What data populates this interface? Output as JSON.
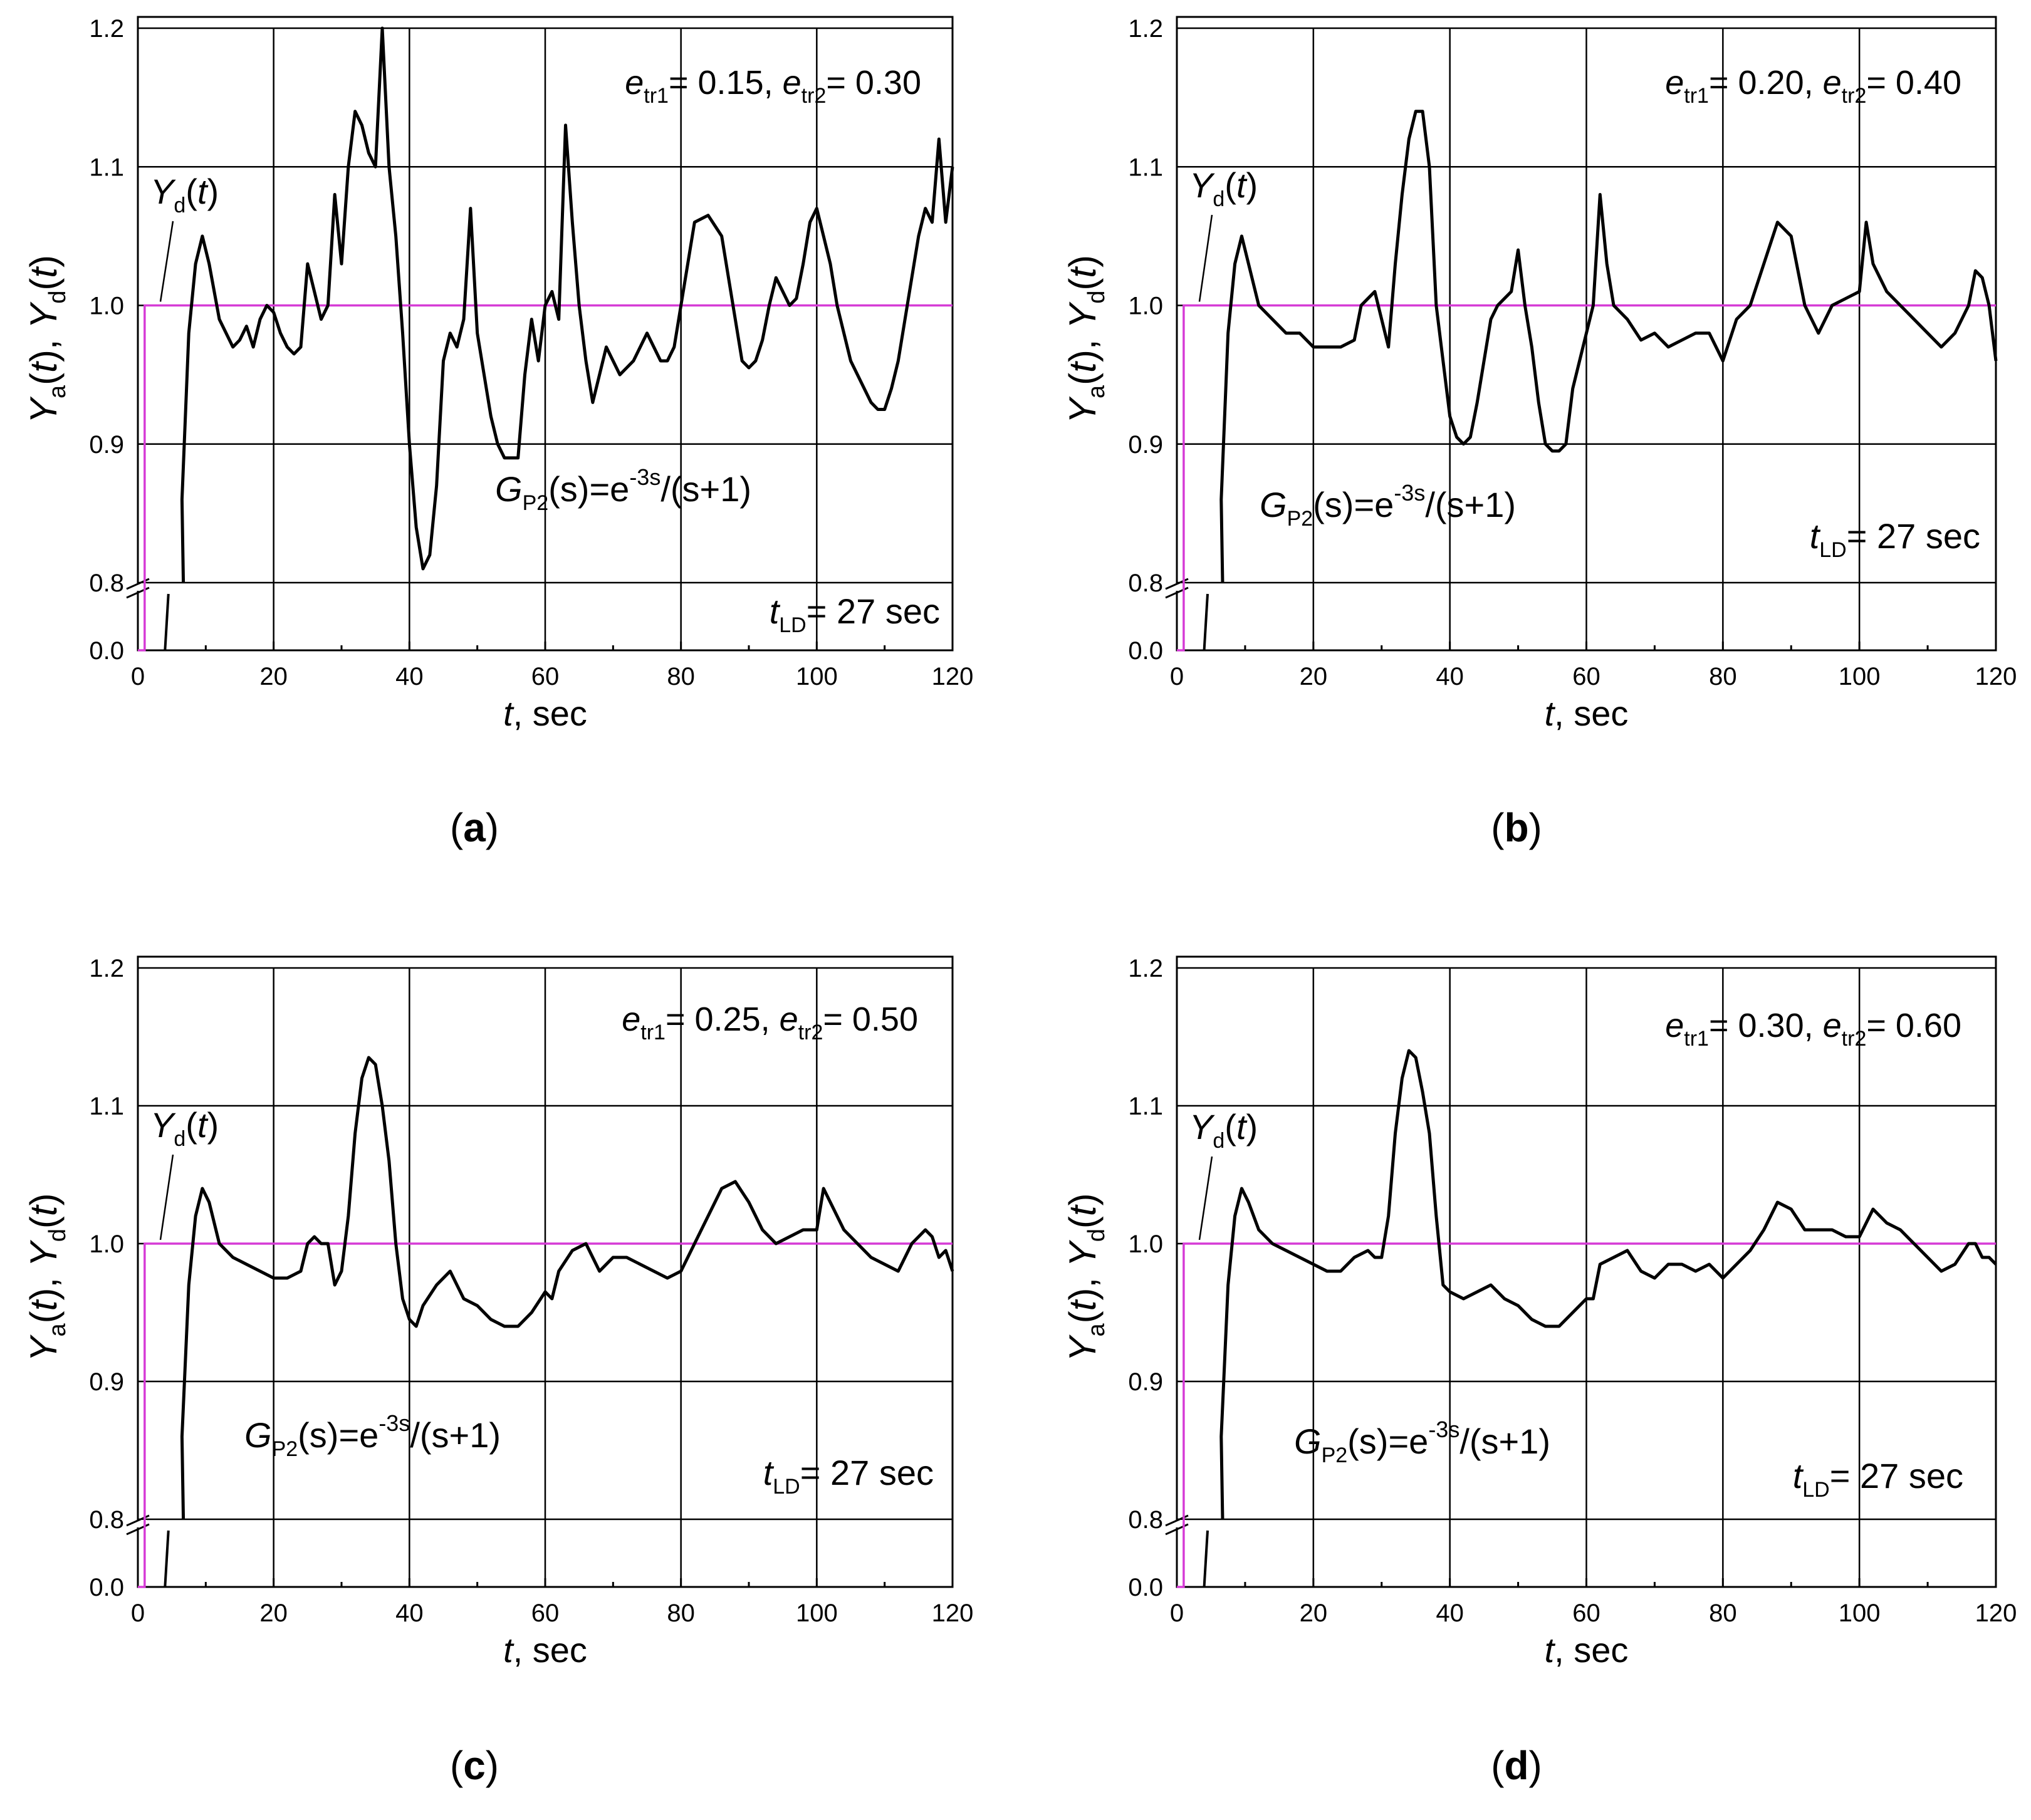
{
  "colors": {
    "response": "#000000",
    "setpoint": "#d63bd6",
    "grid": "#000000",
    "frame": "#000000",
    "background": "#ffffff"
  },
  "chart_data": [
    {
      "type": "line",
      "panel": "a",
      "caption": "(a)",
      "xlabel": "t, sec",
      "ylabel": "Ya(t),  Yd(t)",
      "xlim": [
        0,
        120
      ],
      "ylim_lower": [
        0.0,
        0.05
      ],
      "ylim_upper": [
        0.8,
        1.2
      ],
      "xticks": [
        "0",
        "20",
        "40",
        "60",
        "80",
        "100",
        "120"
      ],
      "yticks_upper": [
        "0.8",
        "0.9",
        "1.0",
        "1.1",
        "1.2"
      ],
      "yticks_lower": [
        "0.0"
      ],
      "annotations": {
        "etr": "etr1= 0.15,  etr2= 0.30",
        "gp2": "GP2(s)=e^-3s/(s+1)",
        "tld": "tLD= 27 sec",
        "yd": "Yd(t)"
      },
      "series": [
        {
          "name": "Yd(t)",
          "x": [
            0,
            1,
            1,
            120
          ],
          "y": [
            0,
            0,
            1.0,
            1.0
          ]
        },
        {
          "name": "Ya(t)",
          "x": [
            0,
            4,
            5,
            6.5,
            7.5,
            8.5,
            9.5,
            10.5,
            12,
            14,
            15,
            16,
            17,
            18,
            19,
            20,
            21,
            22,
            23,
            24,
            25,
            26,
            27,
            28,
            29,
            30,
            31,
            32,
            33,
            34,
            35,
            36,
            37,
            38,
            39,
            40,
            41,
            42,
            43,
            44,
            45,
            46,
            47,
            48,
            49,
            50,
            51,
            52,
            53,
            54,
            55,
            56,
            57,
            58,
            59,
            60,
            61,
            62,
            63,
            64,
            65,
            66,
            67,
            68,
            69,
            70,
            71,
            72,
            73,
            74,
            75,
            76,
            77,
            78,
            79,
            80,
            82,
            84,
            86,
            88,
            89,
            90,
            91,
            92,
            93,
            94,
            95,
            96,
            97,
            98,
            99,
            100,
            101,
            102,
            103,
            104,
            105,
            106,
            107,
            108,
            109,
            110,
            111,
            112,
            113,
            114,
            115,
            116,
            117,
            118,
            119,
            120
          ],
          "y": [
            0,
            0,
            0.7,
            0.86,
            0.98,
            1.03,
            1.05,
            1.03,
            0.99,
            0.97,
            0.975,
            0.985,
            0.97,
            0.99,
            1.0,
            0.995,
            0.98,
            0.97,
            0.965,
            0.97,
            1.03,
            1.01,
            0.99,
            1.0,
            1.08,
            1.03,
            1.1,
            1.14,
            1.13,
            1.11,
            1.1,
            1.2,
            1.1,
            1.05,
            0.98,
            0.9,
            0.84,
            0.81,
            0.82,
            0.87,
            0.96,
            0.98,
            0.97,
            0.99,
            1.07,
            0.98,
            0.95,
            0.92,
            0.9,
            0.89,
            0.89,
            0.89,
            0.95,
            0.99,
            0.96,
            1.0,
            1.01,
            0.99,
            1.13,
            1.06,
            1.0,
            0.96,
            0.93,
            0.95,
            0.97,
            0.96,
            0.95,
            0.955,
            0.96,
            0.97,
            0.98,
            0.97,
            0.96,
            0.96,
            0.97,
            1.0,
            1.06,
            1.065,
            1.05,
            0.99,
            0.96,
            0.955,
            0.96,
            0.975,
            1.0,
            1.02,
            1.01,
            1.0,
            1.005,
            1.03,
            1.06,
            1.07,
            1.05,
            1.03,
            1.0,
            0.98,
            0.96,
            0.95,
            0.94,
            0.93,
            0.925,
            0.925,
            0.94,
            0.96,
            0.99,
            1.02,
            1.05,
            1.07,
            1.06,
            1.12,
            1.06,
            1.1
          ]
        }
      ]
    },
    {
      "type": "line",
      "panel": "b",
      "caption": "(b)",
      "xlabel": "t, sec",
      "ylabel": "Ya(t),  Yd(t)",
      "xlim": [
        0,
        120
      ],
      "ylim_lower": [
        0.0,
        0.05
      ],
      "ylim_upper": [
        0.8,
        1.2
      ],
      "xticks": [
        "0",
        "20",
        "40",
        "60",
        "80",
        "100",
        "120"
      ],
      "yticks_upper": [
        "0.8",
        "0.9",
        "1.0",
        "1.1",
        "1.2"
      ],
      "yticks_lower": [
        "0.0"
      ],
      "annotations": {
        "etr": "etr1= 0.20,  etr2= 0.40",
        "gp2": "GP2(s)=e^-3s/(s+1)",
        "tld": "tLD= 27 sec",
        "yd": "Yd(t)"
      },
      "series": [
        {
          "name": "Yd(t)",
          "x": [
            0,
            1,
            1,
            120
          ],
          "y": [
            0,
            0,
            1.0,
            1.0
          ]
        },
        {
          "name": "Ya(t)",
          "x": [
            0,
            4,
            5,
            6.5,
            7.5,
            8.5,
            9.5,
            10.5,
            12,
            14,
            16,
            18,
            20,
            22,
            24,
            26,
            27,
            28,
            29,
            30,
            31,
            32,
            33,
            34,
            35,
            36,
            37,
            38,
            39,
            40,
            41,
            42,
            43,
            44,
            45,
            46,
            47,
            48,
            49,
            50,
            51,
            52,
            53,
            54,
            55,
            56,
            57,
            58,
            59,
            60,
            61,
            62,
            63,
            64,
            66,
            68,
            70,
            72,
            74,
            76,
            78,
            80,
            82,
            84,
            86,
            88,
            90,
            92,
            94,
            96,
            98,
            100,
            101,
            102,
            104,
            106,
            108,
            110,
            112,
            114,
            116,
            117,
            118,
            119,
            120
          ],
          "y": [
            0,
            0,
            0.7,
            0.86,
            0.98,
            1.03,
            1.05,
            1.03,
            1.0,
            0.99,
            0.98,
            0.98,
            0.97,
            0.97,
            0.97,
            0.975,
            1.0,
            1.005,
            1.01,
            0.99,
            0.97,
            1.03,
            1.08,
            1.12,
            1.14,
            1.14,
            1.1,
            1.0,
            0.96,
            0.92,
            0.905,
            0.9,
            0.905,
            0.93,
            0.96,
            0.99,
            1.0,
            1.005,
            1.01,
            1.04,
            1.0,
            0.97,
            0.93,
            0.9,
            0.895,
            0.895,
            0.9,
            0.94,
            0.96,
            0.98,
            1.0,
            1.08,
            1.03,
            1.0,
            0.99,
            0.975,
            0.98,
            0.97,
            0.975,
            0.98,
            0.98,
            0.96,
            0.99,
            1.0,
            1.03,
            1.06,
            1.05,
            1.0,
            0.98,
            1.0,
            1.005,
            1.01,
            1.06,
            1.03,
            1.01,
            1.0,
            0.99,
            0.98,
            0.97,
            0.98,
            1.0,
            1.025,
            1.02,
            1.0,
            0.96
          ]
        }
      ]
    },
    {
      "type": "line",
      "panel": "c",
      "caption": "(c)",
      "xlabel": "t, sec",
      "ylabel": "Ya(t),  Yd(t)",
      "xlim": [
        0,
        120
      ],
      "ylim_lower": [
        0.0,
        0.05
      ],
      "ylim_upper": [
        0.8,
        1.2
      ],
      "xticks": [
        "0",
        "20",
        "40",
        "60",
        "80",
        "100",
        "120"
      ],
      "yticks_upper": [
        "0.8",
        "0.9",
        "1.0",
        "1.1",
        "1.2"
      ],
      "yticks_lower": [
        "0.0"
      ],
      "annotations": {
        "etr": "etr1= 0.25,  etr2= 0.50",
        "gp2": "GP2(s)=e^-3s/(s+1)",
        "tld": "tLD= 27 sec",
        "yd": "Yd(t)"
      },
      "series": [
        {
          "name": "Yd(t)",
          "x": [
            0,
            1,
            1,
            120
          ],
          "y": [
            0,
            0,
            1.0,
            1.0
          ]
        },
        {
          "name": "Ya(t)",
          "x": [
            0,
            4,
            5,
            6.5,
            7.5,
            8.5,
            9.5,
            10.5,
            12,
            14,
            16,
            18,
            20,
            22,
            24,
            25,
            26,
            27,
            28,
            29,
            30,
            31,
            32,
            33,
            34,
            35,
            36,
            37,
            38,
            39,
            40,
            41,
            42,
            44,
            46,
            48,
            50,
            52,
            54,
            56,
            58,
            60,
            61,
            62,
            64,
            66,
            68,
            70,
            72,
            74,
            76,
            78,
            80,
            82,
            84,
            86,
            88,
            90,
            92,
            94,
            96,
            98,
            100,
            101,
            102,
            104,
            106,
            108,
            110,
            112,
            114,
            116,
            117,
            118,
            119,
            120
          ],
          "y": [
            0,
            0,
            0.7,
            0.86,
            0.97,
            1.02,
            1.04,
            1.03,
            1.0,
            0.99,
            0.985,
            0.98,
            0.975,
            0.975,
            0.98,
            1.0,
            1.005,
            1.0,
            1.0,
            0.97,
            0.98,
            1.02,
            1.08,
            1.12,
            1.135,
            1.13,
            1.1,
            1.06,
            1.0,
            0.96,
            0.945,
            0.94,
            0.955,
            0.97,
            0.98,
            0.96,
            0.955,
            0.945,
            0.94,
            0.94,
            0.95,
            0.965,
            0.96,
            0.98,
            0.995,
            1.0,
            0.98,
            0.99,
            0.99,
            0.985,
            0.98,
            0.975,
            0.98,
            1.0,
            1.02,
            1.04,
            1.045,
            1.03,
            1.01,
            1.0,
            1.005,
            1.01,
            1.01,
            1.04,
            1.03,
            1.01,
            1.0,
            0.99,
            0.985,
            0.98,
            1.0,
            1.01,
            1.005,
            0.99,
            0.995,
            0.98
          ]
        }
      ]
    },
    {
      "type": "line",
      "panel": "d",
      "caption": "(d)",
      "xlabel": "t, sec",
      "ylabel": "Ya(t),  Yd(t)",
      "xlim": [
        0,
        120
      ],
      "ylim_lower": [
        0.0,
        0.05
      ],
      "ylim_upper": [
        0.8,
        1.2
      ],
      "xticks": [
        "0",
        "20",
        "40",
        "60",
        "80",
        "100",
        "120"
      ],
      "yticks_upper": [
        "0.8",
        "0.9",
        "1.0",
        "1.1",
        "1.2"
      ],
      "yticks_lower": [
        "0.0"
      ],
      "annotations": {
        "etr": "etr1= 0.30,  etr2= 0.60",
        "gp2": "GP2(s)=e^-3s/(s+1)",
        "tld": "tLD= 27 sec",
        "yd": "Yd(t)"
      },
      "series": [
        {
          "name": "Yd(t)",
          "x": [
            0,
            1,
            1,
            120
          ],
          "y": [
            0,
            0,
            1.0,
            1.0
          ]
        },
        {
          "name": "Ya(t)",
          "x": [
            0,
            4,
            5,
            6.5,
            7.5,
            8.5,
            9.5,
            10.5,
            12,
            14,
            16,
            18,
            20,
            22,
            24,
            26,
            28,
            29,
            30,
            31,
            32,
            33,
            34,
            35,
            36,
            37,
            38,
            39,
            40,
            42,
            44,
            46,
            48,
            50,
            52,
            54,
            56,
            58,
            60,
            61,
            62,
            64,
            66,
            68,
            70,
            72,
            74,
            76,
            78,
            80,
            82,
            84,
            86,
            88,
            90,
            92,
            94,
            96,
            98,
            100,
            102,
            104,
            106,
            108,
            110,
            112,
            114,
            116,
            117,
            118,
            119,
            120
          ],
          "y": [
            0,
            0,
            0.7,
            0.86,
            0.97,
            1.02,
            1.04,
            1.03,
            1.01,
            1.0,
            0.995,
            0.99,
            0.985,
            0.98,
            0.98,
            0.99,
            0.995,
            0.99,
            0.99,
            1.02,
            1.08,
            1.12,
            1.14,
            1.135,
            1.11,
            1.08,
            1.02,
            0.97,
            0.965,
            0.96,
            0.965,
            0.97,
            0.96,
            0.955,
            0.945,
            0.94,
            0.94,
            0.95,
            0.96,
            0.96,
            0.985,
            0.99,
            0.995,
            0.98,
            0.975,
            0.985,
            0.985,
            0.98,
            0.985,
            0.975,
            0.985,
            0.995,
            1.01,
            1.03,
            1.025,
            1.01,
            1.01,
            1.01,
            1.005,
            1.005,
            1.025,
            1.015,
            1.01,
            1.0,
            0.99,
            0.98,
            0.985,
            1.0,
            1.0,
            0.99,
            0.99,
            0.985
          ]
        }
      ]
    }
  ]
}
